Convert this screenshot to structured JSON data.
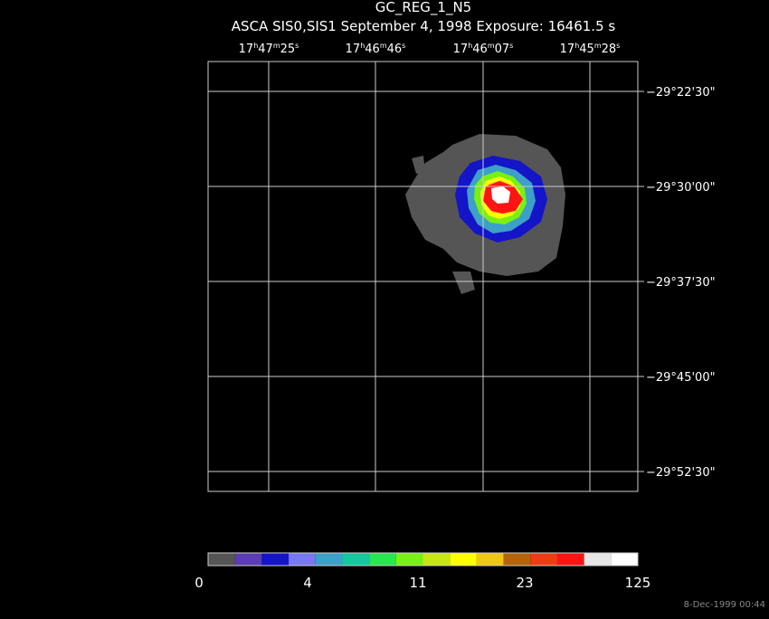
{
  "title": "GC_REG_1_N5",
  "subtitle": "ASCA SIS0,SIS1 September 4, 1998 Exposure: 16461.5 s",
  "ra_labels": [
    [
      "17",
      "h",
      "47",
      "m",
      "25",
      "s"
    ],
    [
      "17",
      "h",
      "46",
      "m",
      "46",
      "s"
    ],
    [
      "17",
      "h",
      "46",
      "m",
      "07",
      "s"
    ],
    [
      "17",
      "h",
      "45",
      "m",
      "28",
      "s"
    ]
  ],
  "dec_labels": [
    "−29°22'30\"",
    "−29°30'00\"",
    "−29°37'30\"",
    "−29°45'00\"",
    "−29°52'30\""
  ],
  "colorbar": {
    "colors": [
      "#555555",
      "#5a3cb4",
      "#1414c8",
      "#7878f0",
      "#3ca0c8",
      "#14c8a0",
      "#28e650",
      "#78f014",
      "#c8e614",
      "#ffff00",
      "#f0c814",
      "#b4640a",
      "#f03c14",
      "#ff1414",
      "#e6e6e6",
      "#ffffff"
    ],
    "labels": [
      0,
      4,
      11,
      23,
      125
    ]
  },
  "timestamp": "8-Dec-1999 00:44"
}
